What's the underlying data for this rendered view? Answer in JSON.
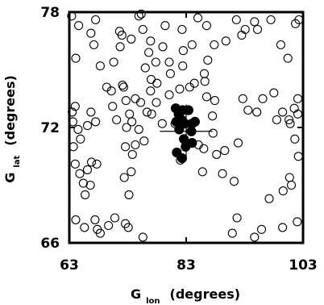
{
  "chart_data": {
    "type": "scatter",
    "xlabel": {
      "main": "G",
      "sub": "lon",
      "unit": "(degrees)"
    },
    "ylabel": {
      "main": "G",
      "sub": "lat",
      "unit": "(degrees)"
    },
    "xlim": [
      63,
      103
    ],
    "ylim": [
      66,
      78
    ],
    "xticks": [
      "63",
      "83",
      "103"
    ],
    "yticks": [
      "66",
      "72",
      "78"
    ],
    "grid": false,
    "marker_colors": {
      "field": "#000000",
      "cluster": "#000000"
    },
    "center": {
      "x": 83.0,
      "y": 71.8,
      "x_err": 4.5,
      "y_err": 1.4
    },
    "series": [
      {
        "marker": "open-circle",
        "points": [
          [
            63.4,
            77.8
          ],
          [
            64.1,
            75.6
          ],
          [
            64.6,
            77.3
          ],
          [
            66.7,
            76.9
          ],
          [
            67.5,
            77.6
          ],
          [
            67.2,
            76.3
          ],
          [
            68.3,
            75.2
          ],
          [
            69.4,
            74.1
          ],
          [
            70.4,
            73.1
          ],
          [
            70.2,
            73.9
          ],
          [
            70.6,
            75.4
          ],
          [
            71.7,
            76.2
          ],
          [
            72.0,
            76.8
          ],
          [
            71.6,
            77.0
          ],
          [
            73.6,
            76.6
          ],
          [
            74.9,
            77.8
          ],
          [
            75.3,
            77.9
          ],
          [
            75.6,
            77.1
          ],
          [
            76.9,
            76.5
          ],
          [
            77.8,
            75.4
          ],
          [
            78.0,
            74.3
          ],
          [
            76.0,
            75.1
          ],
          [
            76.6,
            75.9
          ],
          [
            79.0,
            76.2
          ],
          [
            79.4,
            77.3
          ],
          [
            80.1,
            75.4
          ],
          [
            82.3,
            77.1
          ],
          [
            82.5,
            76.0
          ],
          [
            82.4,
            75.2
          ],
          [
            84.0,
            76.3
          ],
          [
            85.0,
            77.7
          ],
          [
            86.5,
            77.3
          ],
          [
            86.1,
            74.8
          ],
          [
            86.7,
            75.5
          ],
          [
            87.8,
            76.3
          ],
          [
            89.8,
            76.5
          ],
          [
            91.6,
            77.6
          ],
          [
            92.5,
            76.8
          ],
          [
            93.1,
            77.1
          ],
          [
            95.2,
            77.1
          ],
          [
            94.7,
            77.5
          ],
          [
            97.5,
            77.6
          ],
          [
            99.2,
            76.3
          ],
          [
            100.4,
            75.6
          ],
          [
            101.7,
            77.4
          ],
          [
            102.3,
            77.6
          ],
          [
            64.0,
            73.1
          ],
          [
            63.5,
            72.8
          ],
          [
            63.6,
            72.3
          ],
          [
            64.5,
            71.9
          ],
          [
            66.1,
            72.1
          ],
          [
            66.7,
            72.8
          ],
          [
            67.5,
            72.3
          ],
          [
            64.9,
            71.4
          ],
          [
            63.7,
            71.0
          ],
          [
            64.0,
            70.1
          ],
          [
            64.8,
            69.6
          ],
          [
            65.4,
            69.1
          ],
          [
            65.7,
            68.5
          ],
          [
            66.6,
            69.0
          ],
          [
            66.1,
            69.8
          ],
          [
            66.8,
            70.2
          ],
          [
            67.7,
            70.1
          ],
          [
            64.1,
            67.2
          ],
          [
            65.6,
            66.8
          ],
          [
            67.4,
            67.2
          ],
          [
            67.8,
            66.7
          ],
          [
            68.3,
            66.5
          ],
          [
            69.7,
            66.9
          ],
          [
            70.8,
            67.3
          ],
          [
            72.6,
            67.0
          ],
          [
            73.1,
            66.8
          ],
          [
            75.6,
            66.3
          ],
          [
            73.2,
            68.5
          ],
          [
            72.4,
            69.4
          ],
          [
            73.6,
            69.7
          ],
          [
            73.8,
            70.6
          ],
          [
            72.6,
            71.0
          ],
          [
            74.3,
            71.1
          ],
          [
            74.9,
            71.9
          ],
          [
            75.8,
            71.3
          ],
          [
            76.3,
            72.8
          ],
          [
            73.3,
            72.7
          ],
          [
            72.7,
            73.4
          ],
          [
            72.3,
            74.1
          ],
          [
            74.3,
            73.5
          ],
          [
            75.2,
            73.3
          ],
          [
            76.9,
            73.9
          ],
          [
            77.9,
            73.3
          ],
          [
            77.1,
            72.7
          ],
          [
            78.9,
            72.2
          ],
          [
            80.1,
            73.7
          ],
          [
            80.3,
            74.8
          ],
          [
            81.9,
            74.0
          ],
          [
            83.6,
            74.1
          ],
          [
            84.4,
            74.3
          ],
          [
            86.2,
            74.4
          ],
          [
            86.5,
            73.6
          ],
          [
            87.9,
            73.4
          ],
          [
            87.5,
            72.6
          ],
          [
            87.6,
            71.7
          ],
          [
            85.1,
            71.1
          ],
          [
            88.2,
            70.6
          ],
          [
            89.6,
            70.8
          ],
          [
            89.2,
            69.6
          ],
          [
            91.2,
            69.2
          ],
          [
            91.9,
            71.2
          ],
          [
            92.7,
            73.5
          ],
          [
            93.6,
            72.9
          ],
          [
            95.1,
            72.8
          ],
          [
            96.1,
            73.5
          ],
          [
            98.0,
            73.8
          ],
          [
            98.5,
            72.4
          ],
          [
            99.5,
            72.8
          ],
          [
            100.6,
            72.4
          ],
          [
            102.1,
            73.5
          ],
          [
            101.5,
            73.0
          ],
          [
            102.1,
            72.7
          ],
          [
            100.8,
            72.2
          ],
          [
            101.6,
            71.4
          ],
          [
            102.2,
            70.5
          ],
          [
            100.7,
            69.4
          ],
          [
            101.0,
            69.0
          ],
          [
            99.6,
            68.7
          ],
          [
            97.2,
            68.3
          ],
          [
            102.0,
            67.1
          ],
          [
            99.5,
            66.8
          ],
          [
            95.9,
            66.7
          ],
          [
            94.7,
            66.3
          ],
          [
            91.7,
            67.3
          ],
          [
            90.9,
            66.5
          ],
          [
            86.0,
            70.9
          ],
          [
            85.8,
            69.7
          ],
          [
            82.0,
            70.3
          ],
          [
            81.1,
            72.2
          ],
          [
            72.1,
            74.2
          ],
          [
            77.0,
            74.5
          ],
          [
            71.1,
            72.4
          ],
          [
            72.8,
            72.0
          ],
          [
            73.7,
            72.3
          ]
        ]
      },
      {
        "marker": "filled-circle",
        "points": [
          [
            81.2,
            73.0
          ],
          [
            81.7,
            72.7
          ],
          [
            82.4,
            72.9
          ],
          [
            81.3,
            72.3
          ],
          [
            82.2,
            72.4
          ],
          [
            81.8,
            71.9
          ],
          [
            82.8,
            72.2
          ],
          [
            84.0,
            72.2
          ],
          [
            83.9,
            71.8
          ],
          [
            82.6,
            71.4
          ],
          [
            82.9,
            71.0
          ],
          [
            81.4,
            70.7
          ],
          [
            82.3,
            70.4
          ],
          [
            83.4,
            72.9
          ],
          [
            84.5,
            72.3
          ],
          [
            84.0,
            71.2
          ]
        ]
      }
    ]
  }
}
